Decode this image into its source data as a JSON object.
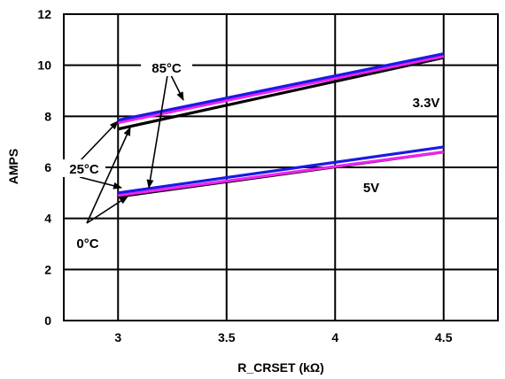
{
  "chart_data": {
    "type": "line",
    "xlabel": "R_CRSET (kΩ)",
    "ylabel": "AMPS",
    "xlim": [
      2.75,
      4.75
    ],
    "ylim": [
      0,
      12
    ],
    "xticks": [
      3,
      3.5,
      4,
      4.5
    ],
    "yticks": [
      0,
      2,
      4,
      6,
      8,
      10,
      12
    ],
    "grid": true,
    "series": [
      {
        "group": "3.3V",
        "temp": "0°C",
        "color": "#000000",
        "x": [
          3,
          4.5
        ],
        "y": [
          7.5,
          10.3
        ]
      },
      {
        "group": "3.3V",
        "temp": "85°C",
        "color": "#ee22ee",
        "x": [
          3,
          4.5
        ],
        "y": [
          7.75,
          10.35
        ]
      },
      {
        "group": "3.3V",
        "temp": "25°C",
        "color": "#1a1ae6",
        "x": [
          3,
          4.5
        ],
        "y": [
          7.85,
          10.45
        ]
      },
      {
        "group": "5V",
        "temp": "0°C",
        "color": "#000000",
        "x": [
          3,
          4.5
        ],
        "y": [
          4.85,
          6.6
        ]
      },
      {
        "group": "5V",
        "temp": "85°C",
        "color": "#ee22ee",
        "x": [
          3,
          4.5
        ],
        "y": [
          4.9,
          6.6
        ]
      },
      {
        "group": "5V",
        "temp": "25°C",
        "color": "#1a1ae6",
        "x": [
          3,
          4.5
        ],
        "y": [
          5.0,
          6.8
        ]
      }
    ],
    "annotations": {
      "temp_85": "85°C",
      "temp_25": "25°C",
      "temp_0": "0°C",
      "group_33": "3.3V",
      "group_5": "5V"
    }
  }
}
